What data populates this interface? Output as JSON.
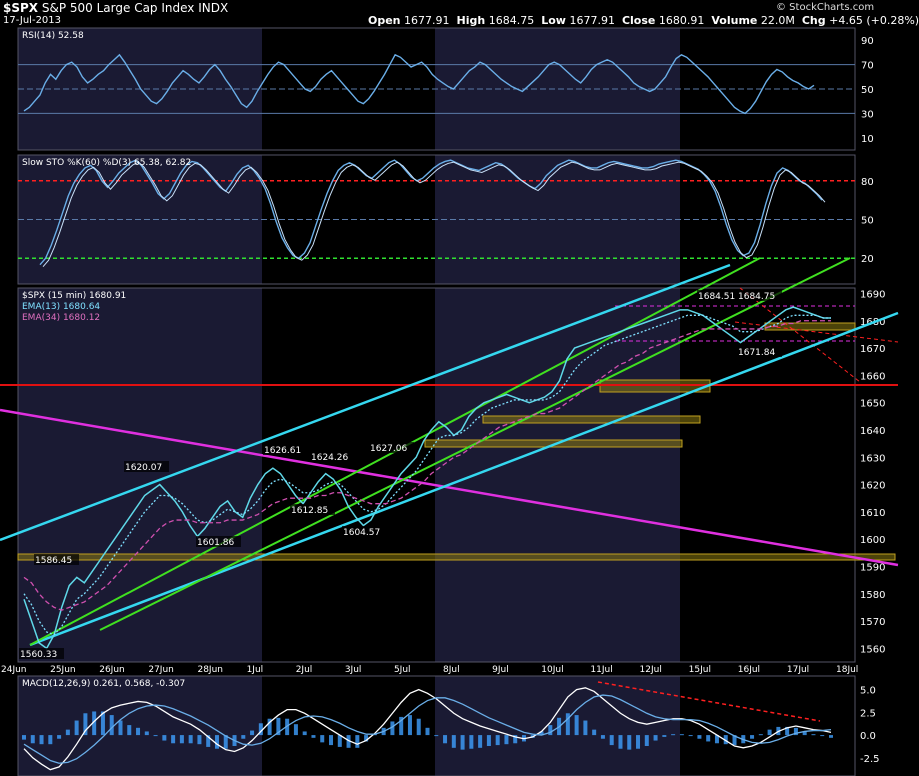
{
  "header": {
    "symbol": "$SPX",
    "name": "S&P 500 Large Cap Index",
    "exchange": "INDX",
    "date": "17-Jul-2013",
    "open_label": "Open",
    "open": "1677.91",
    "high_label": "High",
    "high": "1684.75",
    "low_label": "Low",
    "low": "1677.91",
    "close_label": "Close",
    "close": "1680.91",
    "volume_label": "Volume",
    "volume": "22.0M",
    "chg_label": "Chg",
    "chg": "+4.65 (+0.28%)",
    "credit": "© StockCharts.com"
  },
  "colors": {
    "price": "#5fd8e8",
    "ema13": "#7fe0ff",
    "ema34": "#d050b0",
    "cyan_line": "#35d8f0",
    "green_line": "#40e020",
    "magenta_line": "#e030e0",
    "red_line": "#e01010",
    "gold_zone": "#8a7a10",
    "indicator": "#6aaee8",
    "overbought": "#ff2020",
    "oversold": "#30e030"
  },
  "chart_data": [
    {
      "type": "line",
      "panel": "rsi",
      "title": "RSI(14) 52.58",
      "yticks": [
        10,
        30,
        50,
        70,
        90
      ],
      "ylim": [
        0,
        100
      ],
      "series": [
        {
          "name": "RSI(14)",
          "values": [
            32,
            35,
            40,
            45,
            55,
            62,
            58,
            65,
            70,
            72,
            68,
            60,
            55,
            58,
            62,
            65,
            70,
            74,
            78,
            72,
            65,
            58,
            50,
            45,
            40,
            38,
            42,
            48,
            55,
            60,
            65,
            62,
            58,
            55,
            60,
            66,
            70,
            65,
            58,
            52,
            45,
            38,
            35,
            40,
            48,
            55,
            62,
            68,
            72,
            70,
            65,
            60,
            55,
            50,
            48,
            52,
            58,
            62,
            65,
            60,
            55,
            50,
            45,
            40,
            38,
            42,
            48,
            55,
            62,
            70,
            78,
            76,
            72,
            68,
            70,
            72,
            68,
            62,
            58,
            55,
            52,
            50,
            55,
            60,
            65,
            68,
            72,
            70,
            66,
            62,
            58,
            55,
            52,
            50,
            48,
            52,
            56,
            60,
            65,
            70,
            72,
            70,
            66,
            62,
            58,
            55,
            60,
            66,
            70,
            72,
            74,
            72,
            68,
            64,
            60,
            55,
            52,
            50,
            48,
            50,
            55,
            60,
            68,
            75,
            78,
            76,
            72,
            68,
            64,
            60,
            55,
            50,
            45,
            40,
            35,
            32,
            30,
            34,
            40,
            48,
            56,
            62,
            66,
            64,
            60,
            57,
            55,
            52,
            50,
            53
          ]
        }
      ]
    },
    {
      "type": "line",
      "panel": "stochastic",
      "title": "Slow STO %K(60) %D(3) 65.38, 62.82",
      "yticks": [
        20,
        50,
        80
      ],
      "ylim": [
        0,
        100
      ],
      "overbought": 80,
      "oversold": 20,
      "series": [
        {
          "name": "%K",
          "values": [
            15,
            20,
            30,
            42,
            55,
            68,
            78,
            85,
            90,
            92,
            88,
            80,
            75,
            80,
            86,
            90,
            94,
            96,
            92,
            85,
            78,
            70,
            66,
            70,
            78,
            86,
            92,
            95,
            94,
            90,
            85,
            80,
            75,
            72,
            78,
            85,
            90,
            92,
            88,
            82,
            74,
            62,
            48,
            36,
            28,
            22,
            20,
            24,
            32,
            45,
            58,
            70,
            80,
            88,
            92,
            94,
            92,
            88,
            84,
            82,
            86,
            90,
            94,
            96,
            93,
            88,
            83,
            80,
            82,
            86,
            90,
            93,
            95,
            96,
            94,
            92,
            90,
            89,
            88,
            90,
            92,
            94,
            93,
            90,
            86,
            82,
            79,
            76,
            74,
            78,
            84,
            88,
            92,
            94,
            96,
            95,
            93,
            91,
            90,
            90,
            92,
            94,
            95,
            94,
            93,
            92,
            91,
            90,
            90,
            91,
            93,
            94,
            95,
            96,
            95,
            93,
            91,
            89,
            85,
            80,
            72,
            60,
            46,
            34,
            26,
            22,
            24,
            32,
            46,
            62,
            76,
            86,
            90,
            88,
            84,
            80,
            78,
            74,
            70,
            65
          ]
        }
      ]
    },
    {
      "type": "line",
      "panel": "price",
      "title": "$SPX (15 min) 1680.91",
      "xticks": [
        "24Jun",
        "25Jun",
        "26Jun",
        "27Jun",
        "28Jun",
        "1Jul",
        "2Jul",
        "3Jul",
        "5Jul",
        "8Jul",
        "9Jul",
        "10Jul",
        "11Jul",
        "12Jul",
        "15Jul",
        "16Jul",
        "17Jul",
        "18Jul"
      ],
      "yticks": [
        1560,
        1570,
        1580,
        1590,
        1600,
        1610,
        1620,
        1630,
        1640,
        1650,
        1660,
        1670,
        1680,
        1690
      ],
      "ylim": [
        1555,
        1692
      ],
      "series": [
        {
          "name": "$SPX (15 min) 1680.91",
          "values": [
            1578,
            1570,
            1562,
            1560,
            1565,
            1575,
            1583,
            1586,
            1584,
            1588,
            1592,
            1596,
            1600,
            1604,
            1608,
            1612,
            1616,
            1618,
            1620,
            1617,
            1614,
            1610,
            1605,
            1601,
            1604,
            1608,
            1612,
            1614,
            1610,
            1608,
            1615,
            1620,
            1624,
            1626,
            1624,
            1620,
            1616,
            1613,
            1617,
            1621,
            1624,
            1622,
            1618,
            1612,
            1608,
            1605,
            1607,
            1612,
            1616,
            1620,
            1624,
            1627,
            1630,
            1636,
            1640,
            1643,
            1641,
            1638,
            1640,
            1645,
            1648,
            1650,
            1651,
            1652,
            1653,
            1652,
            1651,
            1650,
            1651,
            1652,
            1654,
            1658,
            1666,
            1670,
            1671,
            1672,
            1673,
            1674,
            1675,
            1676,
            1677,
            1678,
            1679,
            1680,
            1681,
            1682,
            1683,
            1684,
            1684,
            1683,
            1682,
            1680,
            1678,
            1676,
            1674,
            1672,
            1674,
            1676,
            1678,
            1680,
            1682,
            1684,
            1685,
            1684,
            1683,
            1682,
            1681,
            1681
          ]
        },
        {
          "name": "EMA(13) 1680.64",
          "values": [
            1580,
            1576,
            1570,
            1566,
            1565,
            1568,
            1573,
            1578,
            1580,
            1583,
            1586,
            1590,
            1594,
            1598,
            1602,
            1606,
            1610,
            1613,
            1616,
            1616,
            1615,
            1613,
            1610,
            1607,
            1606,
            1607,
            1609,
            1611,
            1610,
            1609,
            1611,
            1614,
            1618,
            1621,
            1622,
            1621,
            1619,
            1617,
            1617,
            1618,
            1620,
            1621,
            1620,
            1617,
            1614,
            1611,
            1610,
            1611,
            1613,
            1616,
            1619,
            1622,
            1625,
            1629,
            1633,
            1637,
            1638,
            1638,
            1639,
            1641,
            1644,
            1646,
            1648,
            1649,
            1650,
            1651,
            1651,
            1651,
            1651,
            1651,
            1652,
            1654,
            1658,
            1662,
            1665,
            1667,
            1669,
            1671,
            1672,
            1673,
            1674,
            1675,
            1676,
            1677,
            1678,
            1679,
            1680,
            1681,
            1682,
            1682,
            1682,
            1681,
            1680,
            1679,
            1678,
            1676,
            1676,
            1676,
            1677,
            1678,
            1679,
            1681,
            1682,
            1682,
            1682,
            1682,
            1681,
            1681
          ]
        },
        {
          "name": "EMA(34) 1680.12",
          "values": [
            1586,
            1584,
            1580,
            1577,
            1575,
            1574,
            1575,
            1576,
            1577,
            1579,
            1581,
            1583,
            1586,
            1589,
            1592,
            1595,
            1598,
            1601,
            1604,
            1606,
            1607,
            1607,
            1607,
            1606,
            1606,
            1606,
            1606,
            1607,
            1607,
            1607,
            1608,
            1609,
            1611,
            1613,
            1614,
            1615,
            1615,
            1615,
            1615,
            1616,
            1616,
            1617,
            1617,
            1616,
            1615,
            1614,
            1613,
            1613,
            1613,
            1614,
            1615,
            1617,
            1619,
            1621,
            1624,
            1626,
            1628,
            1630,
            1631,
            1633,
            1635,
            1637,
            1639,
            1641,
            1642,
            1643,
            1644,
            1645,
            1646,
            1646,
            1647,
            1648,
            1650,
            1652,
            1654,
            1656,
            1658,
            1660,
            1662,
            1664,
            1665,
            1667,
            1668,
            1670,
            1671,
            1672,
            1673,
            1674,
            1675,
            1676,
            1677,
            1677,
            1677,
            1677,
            1677,
            1677,
            1677,
            1677,
            1677,
            1678,
            1678,
            1679,
            1679,
            1680,
            1680,
            1680,
            1680,
            1680
          ]
        }
      ],
      "annotations": [
        "1560.33",
        "1586.45",
        "1620.07",
        "1601.86",
        "1626.61",
        "1612.85",
        "1624.26",
        "1604.57",
        "1627.06",
        "1684.51",
        "1684.75",
        "1671.84"
      ]
    },
    {
      "type": "area",
      "panel": "macd",
      "title": "MACD(12,26,9) 0.261, 0.568, -0.307",
      "yticks": [
        -2.5,
        0.0,
        2.5,
        5.0
      ],
      "ylim": [
        -4.5,
        6.5
      ],
      "series": [
        {
          "name": "MACD",
          "values": [
            -1.5,
            -2.5,
            -3.2,
            -3.8,
            -3.5,
            -2.4,
            -1.0,
            0.5,
            1.5,
            2.4,
            3.0,
            3.3,
            3.5,
            3.7,
            3.6,
            3.2,
            2.6,
            2.0,
            1.6,
            1.2,
            0.6,
            -0.2,
            -1.0,
            -1.6,
            -1.8,
            -1.4,
            -0.6,
            0.4,
            1.4,
            2.2,
            2.8,
            2.8,
            2.4,
            1.8,
            1.2,
            0.6,
            0.0,
            -0.6,
            -1.0,
            -0.6,
            0.2,
            1.2,
            2.4,
            3.6,
            4.6,
            5.0,
            4.6,
            4.0,
            3.2,
            2.4,
            1.8,
            1.4,
            1.0,
            0.7,
            0.4,
            0.1,
            -0.2,
            -0.4,
            -0.2,
            0.4,
            1.4,
            2.8,
            4.2,
            5.0,
            5.2,
            4.8,
            4.0,
            3.2,
            2.4,
            1.8,
            1.4,
            1.2,
            1.4,
            1.6,
            1.8,
            1.8,
            1.6,
            1.2,
            0.6,
            0.0,
            -0.6,
            -1.2,
            -1.4,
            -1.2,
            -0.8,
            -0.2,
            0.4,
            0.8,
            1.0,
            0.8,
            0.6,
            0.5,
            0.3
          ]
        },
        {
          "name": "Signal",
          "values": [
            -1.0,
            -1.6,
            -2.2,
            -2.8,
            -3.1,
            -3.0,
            -2.6,
            -1.9,
            -1.1,
            -0.2,
            0.8,
            1.7,
            2.4,
            2.9,
            3.2,
            3.3,
            3.2,
            2.9,
            2.5,
            2.1,
            1.6,
            1.1,
            0.5,
            -0.1,
            -0.6,
            -1.0,
            -1.1,
            -0.9,
            -0.4,
            0.3,
            1.0,
            1.6,
            2.0,
            2.1,
            2.0,
            1.7,
            1.3,
            0.8,
            0.4,
            0.1,
            0.1,
            0.4,
            0.9,
            1.6,
            2.4,
            3.2,
            3.8,
            4.1,
            4.1,
            3.8,
            3.4,
            2.9,
            2.4,
            1.9,
            1.5,
            1.1,
            0.7,
            0.3,
            0.1,
            0.0,
            0.3,
            0.9,
            1.8,
            2.8,
            3.6,
            4.2,
            4.4,
            4.3,
            3.9,
            3.4,
            2.9,
            2.4,
            2.0,
            1.8,
            1.7,
            1.7,
            1.7,
            1.6,
            1.3,
            0.9,
            0.4,
            -0.1,
            -0.5,
            -0.8,
            -0.9,
            -0.8,
            -0.5,
            -0.1,
            0.2,
            0.4,
            0.5,
            0.5,
            0.6
          ]
        }
      ]
    }
  ]
}
